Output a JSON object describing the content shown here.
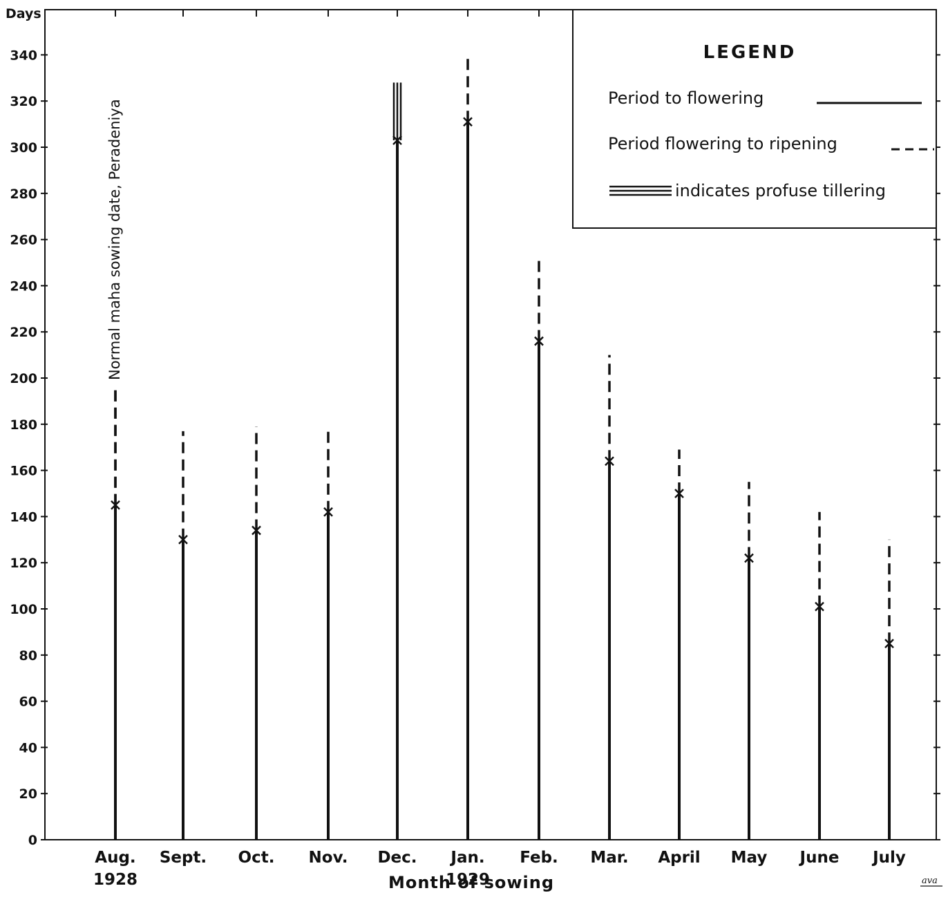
{
  "chart_data": {
    "type": "bar",
    "ylabel": "Days",
    "xlabel": "Month of sowing",
    "ylim": [
      0,
      360
    ],
    "yticks": [
      0,
      20,
      40,
      60,
      80,
      100,
      120,
      140,
      160,
      180,
      200,
      220,
      240,
      260,
      280,
      300,
      320,
      340
    ],
    "categories": [
      "Aug.",
      "Sept.",
      "Oct.",
      "Nov.",
      "Dec.",
      "Jan.",
      "Feb.",
      "Mar.",
      "April",
      "May",
      "June",
      "July"
    ],
    "year_labels": [
      {
        "category": "Aug.",
        "text": "1928"
      },
      {
        "category": "Jan.",
        "text": "1929"
      }
    ],
    "series": [
      {
        "name": "Period to flowering",
        "style": "solid",
        "values": [
          145,
          130,
          134,
          142,
          303,
          311,
          216,
          164,
          150,
          122,
          101,
          85
        ]
      },
      {
        "name": "Period flowering to ripening",
        "style": "dashed",
        "values": [
          195,
          177,
          179,
          179,
          328,
          340,
          253,
          210,
          169,
          155,
          142,
          130
        ]
      }
    ],
    "profuse_tillering": [
      "Dec."
    ],
    "legend": {
      "title": "LEGEND",
      "placement": "top-right",
      "entries": [
        {
          "label": "Period to flowering",
          "style": "solid"
        },
        {
          "label": "Period flowering to ripening",
          "style": "dashed"
        },
        {
          "label": "indicates profuse tillering",
          "style": "triple"
        }
      ]
    },
    "annotation": {
      "category": "Aug.",
      "text": "Normal maha sowing date, Peradeniya"
    },
    "grid": false
  }
}
